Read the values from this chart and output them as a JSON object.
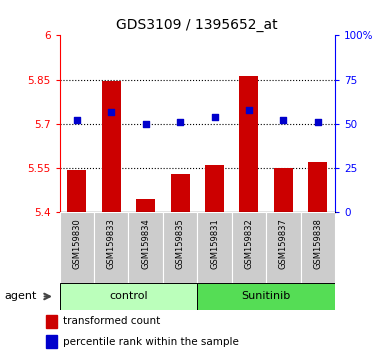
{
  "title": "GDS3109 / 1395652_at",
  "samples": [
    "GSM159830",
    "GSM159833",
    "GSM159834",
    "GSM159835",
    "GSM159831",
    "GSM159832",
    "GSM159837",
    "GSM159838"
  ],
  "bar_values": [
    5.545,
    5.845,
    5.445,
    5.53,
    5.562,
    5.862,
    5.552,
    5.572
  ],
  "dot_values": [
    52,
    57,
    50,
    51,
    54,
    58,
    52,
    51
  ],
  "bar_bottom": 5.4,
  "ylim_left": [
    5.4,
    6.0
  ],
  "ylim_right": [
    0,
    100
  ],
  "yticks_left": [
    5.4,
    5.55,
    5.7,
    5.85,
    6.0
  ],
  "ytick_labels_left": [
    "5.4",
    "5.55",
    "5.7",
    "5.85",
    "6"
  ],
  "yticks_right": [
    0,
    25,
    50,
    75,
    100
  ],
  "ytick_labels_right": [
    "0",
    "25",
    "50",
    "75",
    "100%"
  ],
  "hlines": [
    5.55,
    5.7,
    5.85
  ],
  "bar_color": "#cc0000",
  "dot_color": "#0000cc",
  "ctrl_label": "control",
  "sunit_label": "Sunitinib",
  "ctrl_color": "#bbffbb",
  "sunit_color": "#55dd55",
  "sample_bg_color": "#cccccc",
  "agent_label": "agent",
  "legend_bar_label": "transformed count",
  "legend_dot_label": "percentile rank within the sample",
  "title_fontsize": 10,
  "tick_fontsize": 7.5,
  "label_fontsize": 6,
  "group_fontsize": 8,
  "bar_width": 0.55
}
